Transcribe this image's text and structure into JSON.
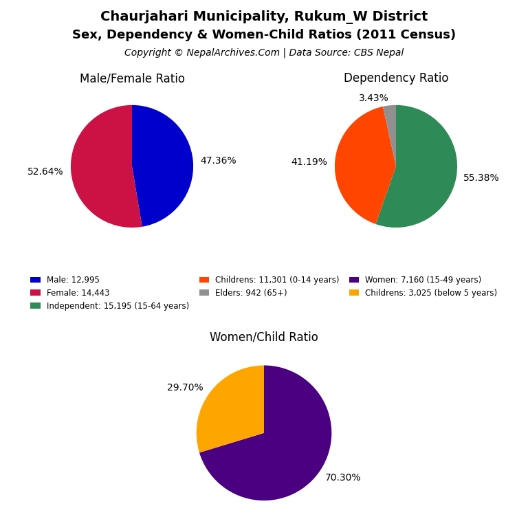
{
  "title": "Chaurjahari Municipality, Rukum_W District",
  "subtitle": "Sex, Dependency & Women-Child Ratios (2011 Census)",
  "annotations": [
    "Copyright © NepalArchives.Com | Data Source: CBS Nepal"
  ],
  "legend": "center",
  "chart_data": [
    {
      "type": "pie",
      "title": "Male/Female Ratio",
      "categories": [
        "Male: 12,995",
        "Female: 14,443"
      ],
      "values": [
        47.36,
        52.64
      ],
      "value_labels": [
        "47.36%",
        "52.64%"
      ],
      "colors": [
        "#0000CD",
        "#CC1144"
      ]
    },
    {
      "type": "pie",
      "title": "Dependency Ratio",
      "categories": [
        "Independent: 15,195 (15-64 years)",
        "Childrens: 11,301 (0-14 years)",
        "Elders: 942 (65+)"
      ],
      "values": [
        55.38,
        41.19,
        3.43
      ],
      "value_labels": [
        "55.38%",
        "41.19%",
        "3.43%"
      ],
      "colors": [
        "#2E8B57",
        "#FF4500",
        "#909090"
      ]
    },
    {
      "type": "pie",
      "title": "Women/Child Ratio",
      "categories": [
        "Women: 7,160 (15-49 years)",
        "Childrens: 3,025 (below 5 years)"
      ],
      "values": [
        70.3,
        29.7
      ],
      "value_labels": [
        "70.30%",
        "29.70%"
      ],
      "colors": [
        "#4B0082",
        "#FFA500"
      ]
    }
  ]
}
